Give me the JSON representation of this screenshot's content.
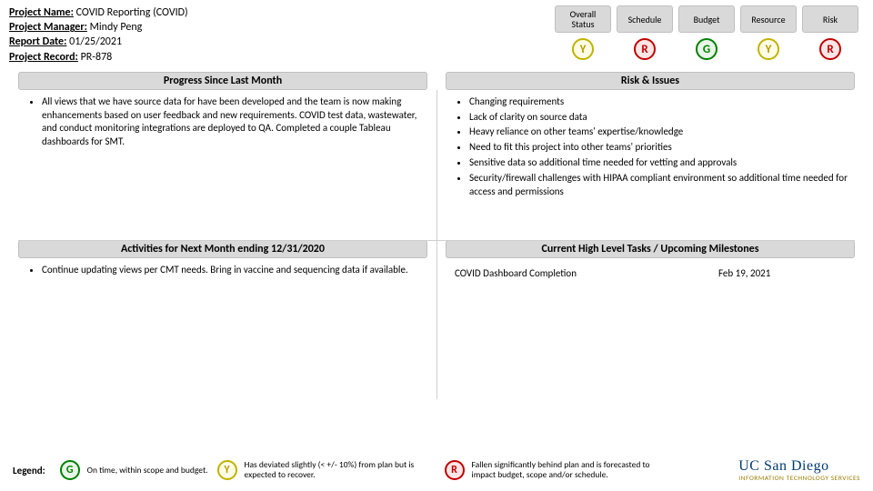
{
  "meta": {
    "project_name_label": "Project Name:",
    "project_name_value": "COVID Reporting (COVID)",
    "project_manager_label": "Project Manager:",
    "project_manager_value": "Mindy Peng",
    "report_date_label": "Report Date:",
    "report_date_value": "01/25/2021",
    "project_record_label": "Project Record:",
    "project_record_value": "PR-878"
  },
  "status": {
    "headers": {
      "overall": "Overall Status",
      "schedule": "Schedule",
      "budget": "Budget",
      "resource": "Resource",
      "risk": "Risk"
    },
    "values": {
      "overall": "Y",
      "schedule": "R",
      "budget": "G",
      "resource": "Y",
      "risk": "R"
    }
  },
  "panels": {
    "progress_title": "Progress Since Last Month",
    "progress_items": {
      "0": "All views that we have source data for have been developed and the team is now making enhancements based on user feedback and new requirements. COVID test data, wastewater, and conduct monitoring integrations are deployed to QA. Completed a couple Tableau dashboards for SMT."
    },
    "risks_title": "Risk & Issues",
    "risks_items": {
      "0": "Changing requirements",
      "1": "Lack of clarity on source data",
      "2": "Heavy reliance on other teams' expertise/knowledge",
      "3": "Need to fit this project into other teams' priorities",
      "4": "Sensitive data so additional time needed for vetting and approvals",
      "5": "Security/firewall challenges with HIPAA compliant environment so additional time needed for access and permissions"
    },
    "activities_title": "Activities for Next Month ending 12/31/2020",
    "activities_items": {
      "0": "Continue updating views per CMT needs. Bring in vaccine and sequencing data if available."
    },
    "milestones_title": "Current High Level Tasks / Upcoming Milestones",
    "milestones": {
      "0": {
        "name": "COVID Dashboard Completion",
        "date": "Feb 19, 2021"
      }
    }
  },
  "legend": {
    "label": "Legend:",
    "g_letter": "G",
    "g_text": "On time, within scope and budget.",
    "y_letter": "Y",
    "y_text": "Has deviated slightly (< +/- 10%) from plan but is expected to recover.",
    "r_letter": "R",
    "r_text": "Fallen significantly behind plan and is forecasted to impact budget, scope and/or schedule."
  },
  "logo": {
    "main": "UC San Diego",
    "sub": "INFORMATION TECHNOLOGY SERVICES"
  },
  "colors": {
    "panel_bg": "#d9d9d9",
    "green": "#008000",
    "yellow": "#c2b200",
    "red": "#c00000"
  }
}
